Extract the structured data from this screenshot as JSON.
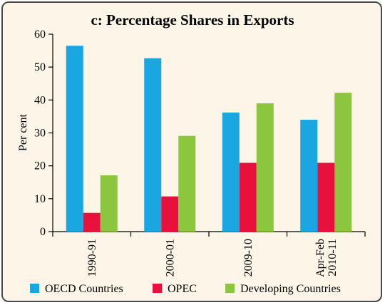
{
  "chart_data": {
    "type": "bar",
    "title": "c: Percentage Shares in  Exports",
    "ylabel": "Per cent",
    "xlabel": "",
    "ylim": [
      0,
      60
    ],
    "yticks": [
      0,
      10,
      20,
      30,
      40,
      50,
      60
    ],
    "categories": [
      [
        "1990-91"
      ],
      [
        "2000-01"
      ],
      [
        "2009-10"
      ],
      [
        "Apr-Feb",
        "2010-11"
      ]
    ],
    "series": [
      {
        "name": "OECD Countries",
        "color": "#1aa6e0",
        "values": [
          56.5,
          52.7,
          36.2,
          34.0
        ]
      },
      {
        "name": "OPEC",
        "color": "#e8103c",
        "values": [
          5.7,
          10.7,
          20.9,
          20.9
        ]
      },
      {
        "name": "Developing Countries",
        "color": "#8cc63f",
        "values": [
          17.1,
          29.1,
          39.0,
          42.2
        ]
      }
    ],
    "legend_position": "bottom",
    "grid": false
  }
}
